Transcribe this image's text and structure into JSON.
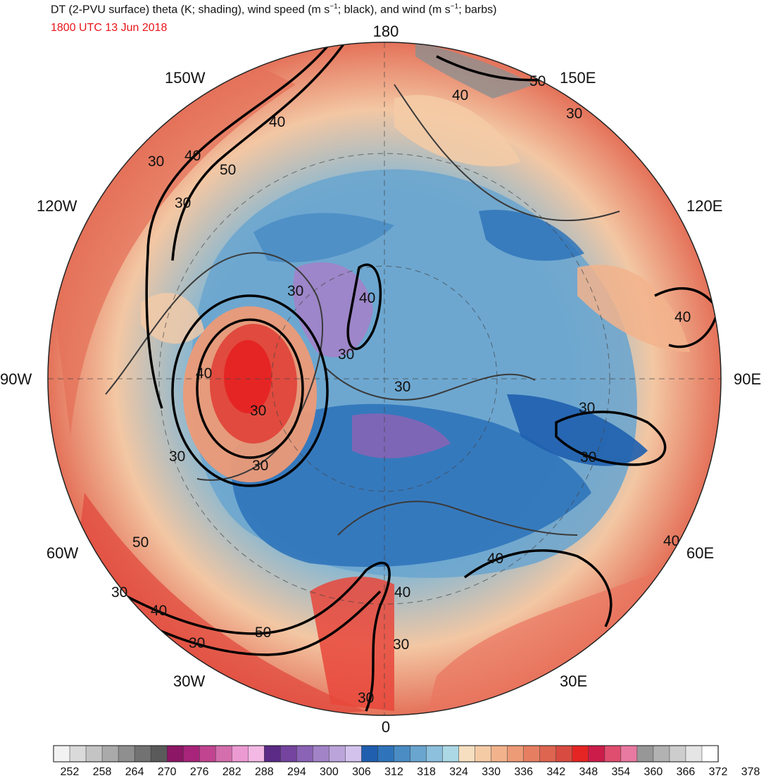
{
  "header": {
    "title_main": "DT (2-PVU surface) theta (K; shading), wind speed (m s",
    "title_sup1": "−1",
    "title_mid": "; black), and wind (m s",
    "title_sup2": "−1",
    "title_end": "; barbs)",
    "valid_time": "1800 UTC 13 Jun 2018",
    "valid_time_color": "#e8141a"
  },
  "map": {
    "projection": "north-polar-stereographic",
    "longitude_labels": [
      "180",
      "150E",
      "120E",
      "90E",
      "60E",
      "30E",
      "0",
      "30W",
      "60W",
      "90W",
      "120W",
      "150W"
    ],
    "contour_labels": [
      "30",
      "40",
      "50"
    ],
    "contour_color": "#000000",
    "coastline_color": "#3a3a3a",
    "gridline_style": "dashed"
  },
  "colorbar": {
    "colors": [
      "#f2f2f2",
      "#dadada",
      "#c4c4c4",
      "#aaaaaa",
      "#8f8f8f",
      "#727272",
      "#5a5a5a",
      "#8c1766",
      "#a8247a",
      "#c04490",
      "#d46ead",
      "#ec9ad2",
      "#f3b8e4",
      "#5b2b86",
      "#74449e",
      "#8a63b5",
      "#a283c8",
      "#bba4da",
      "#d3c3ec",
      "#1f5fae",
      "#2f74ba",
      "#4a8cc4",
      "#6aa5cf",
      "#8cc0dd",
      "#acd8e6",
      "#f6dfc0",
      "#f5cba6",
      "#f2b38c",
      "#ed9a77",
      "#e67f62",
      "#de6550",
      "#d84b40",
      "#e52524",
      "#cc1d4a",
      "#df4d6f",
      "#e879a0",
      "#979797",
      "#b2b2b2",
      "#cdcdcd",
      "#e5e5e5",
      "#ffffff"
    ],
    "tick_labels": [
      "252",
      "258",
      "264",
      "270",
      "276",
      "282",
      "288",
      "294",
      "300",
      "306",
      "312",
      "318",
      "324",
      "330",
      "336",
      "342",
      "348",
      "354",
      "360",
      "366",
      "372",
      "378"
    ]
  }
}
